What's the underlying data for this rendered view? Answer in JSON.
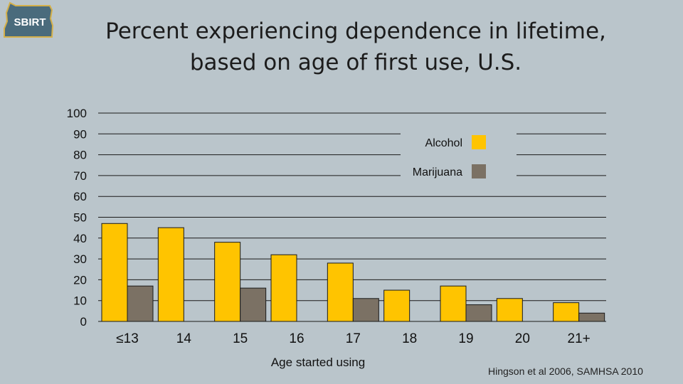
{
  "logo": {
    "text": "SBIRT"
  },
  "slide": {
    "title_line1": "Percent experiencing dependence in lifetime,",
    "title_line2": "based on age of first use, U.S.",
    "credit": "Hingson et al 2006, SAMHSA 2010"
  },
  "colors": {
    "alcohol": "#ffc400",
    "marijuana": "#7b7164",
    "background": "#bac5cb",
    "logo": "#4a6b7c"
  },
  "chart_data": {
    "type": "bar",
    "title": "",
    "xlabel": "Age started using",
    "ylabel": "",
    "ylim": [
      0,
      100
    ],
    "yticks": [
      0,
      10,
      20,
      30,
      40,
      50,
      60,
      70,
      80,
      90,
      100
    ],
    "categories": [
      "≤13",
      "14",
      "15",
      "16",
      "17",
      "18",
      "19",
      "20",
      "21+"
    ],
    "series": [
      {
        "name": "Alcohol",
        "values": [
          47,
          45,
          38,
          32,
          28,
          15,
          17,
          11,
          9
        ]
      },
      {
        "name": "Marijuana",
        "values": [
          17,
          null,
          16,
          null,
          11,
          null,
          8,
          null,
          4
        ]
      }
    ],
    "legend_position": "top-right",
    "grid": true
  }
}
